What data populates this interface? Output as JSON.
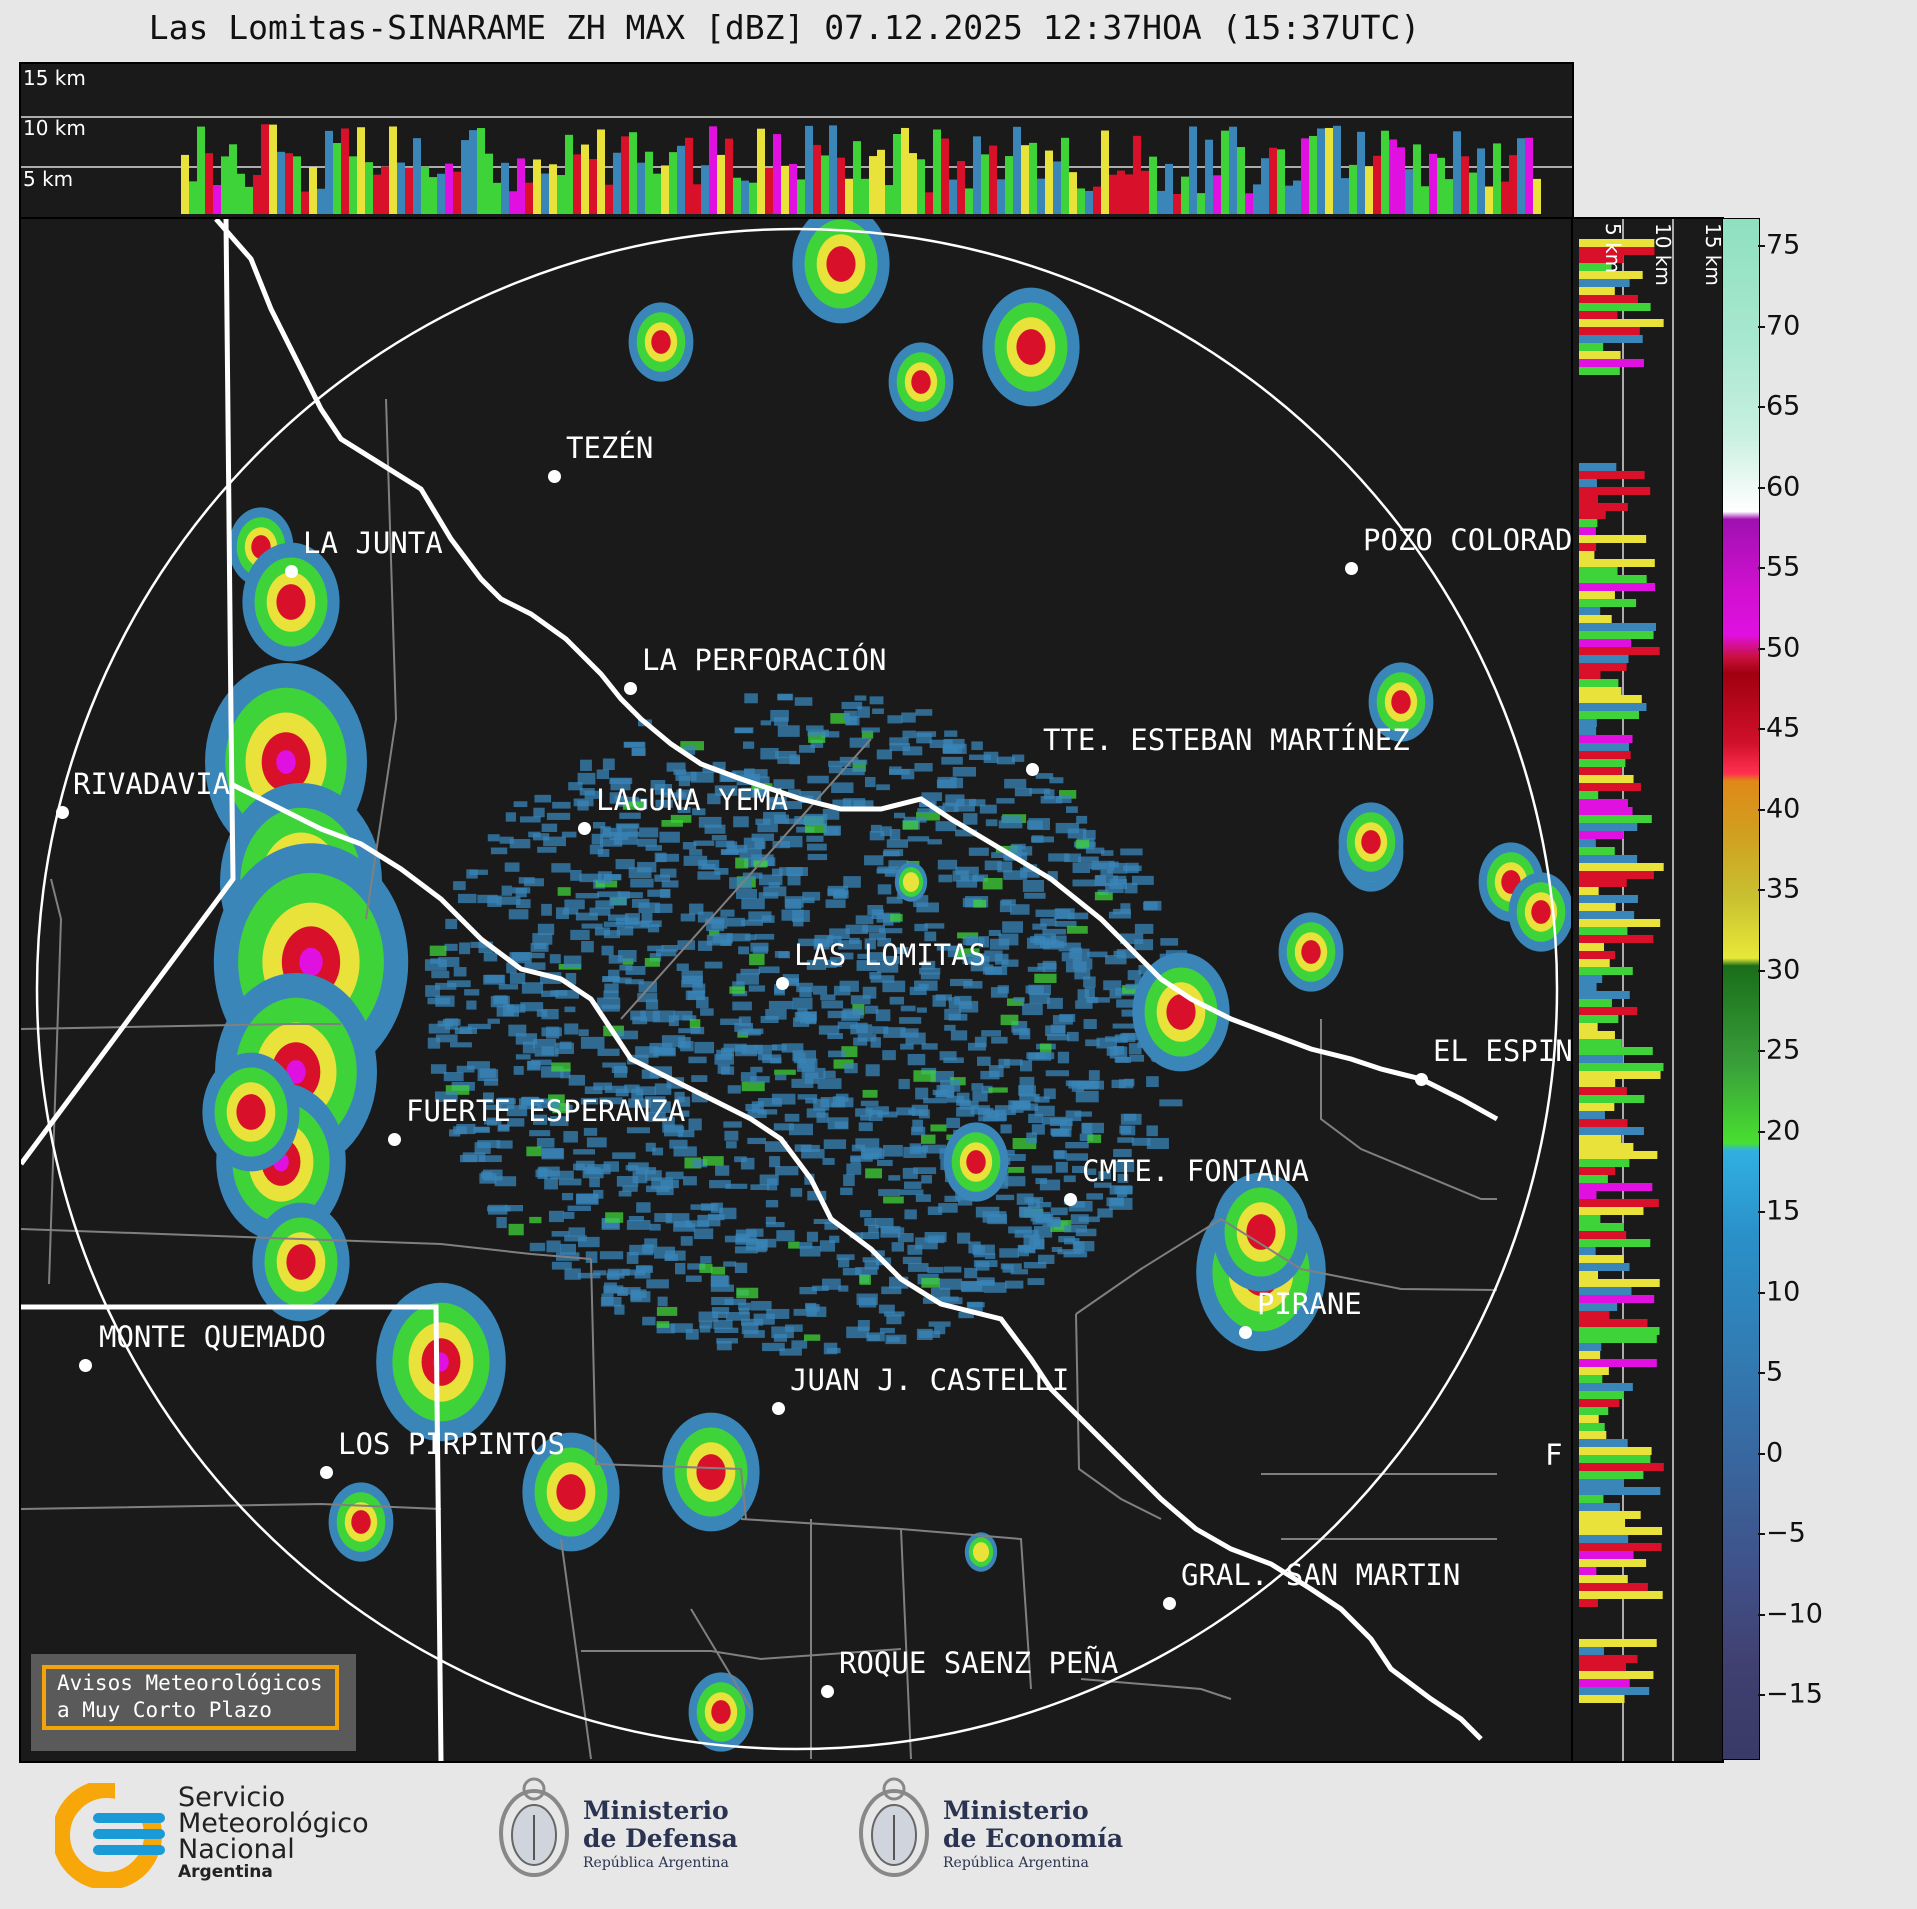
{
  "title": "Las Lomitas-SINARAME ZH MAX [dBZ] 07.12.2025 12:37HOA (15:37UTC)",
  "top_strip": {
    "altitudes": [
      "15 km",
      "10 km",
      "5 km"
    ]
  },
  "side_strip": {
    "altitudes": [
      "5 km",
      "10 km",
      "15 km"
    ]
  },
  "colorbar": {
    "units": "dBZ",
    "ticks": [
      "75",
      "70",
      "65",
      "60",
      "55",
      "50",
      "45",
      "40",
      "35",
      "30",
      "25",
      "20",
      "15",
      "10",
      "5",
      "0",
      "−5",
      "−10",
      "−15"
    ]
  },
  "cities": [
    {
      "name": "TEZÉN"
    },
    {
      "name": "LA JUNTA"
    },
    {
      "name": "POZO COLORAD"
    },
    {
      "name": "LA PERFORACIÓN"
    },
    {
      "name": "TTE. ESTEBAN MARTÍNEZ"
    },
    {
      "name": "RIVADAVIA"
    },
    {
      "name": "LAGUNA YEMA"
    },
    {
      "name": "LAS LOMITAS"
    },
    {
      "name": "EL ESPIN"
    },
    {
      "name": "FUERTE ESPERANZA"
    },
    {
      "name": "CMTE. FONTANA"
    },
    {
      "name": "PIRANE"
    },
    {
      "name": "MONTE QUEMADO"
    },
    {
      "name": "JUAN J. CASTELLI"
    },
    {
      "name": "LOS PIRPINTOS"
    },
    {
      "name": "F"
    },
    {
      "name": "GRAL. SAN MARTIN"
    },
    {
      "name": "ROQUE SAENZ PEÑA"
    }
  ],
  "avisos": {
    "line1": "Avisos Meteorológicos",
    "line2": "a Muy Corto Plazo"
  },
  "footer": {
    "smn": {
      "line1": "Servicio",
      "line2": "Meteorológico",
      "line3": "Nacional",
      "line4": "Argentina"
    },
    "defensa": {
      "line1": "Ministerio",
      "line2": "de Defensa",
      "line3": "República Argentina"
    },
    "economia": {
      "line1": "Ministerio",
      "line2": "de Economía",
      "line3": "República Argentina"
    }
  },
  "colors": {
    "background": "#1a1a1a",
    "weak_echo": "#3a86b8",
    "moderate_echo": "#3fd33a",
    "strong_echo": "#e8e23a",
    "heavy_echo": "#d8102a",
    "extreme_echo": "#e010e0",
    "accent_orange": "#f4a40b"
  }
}
